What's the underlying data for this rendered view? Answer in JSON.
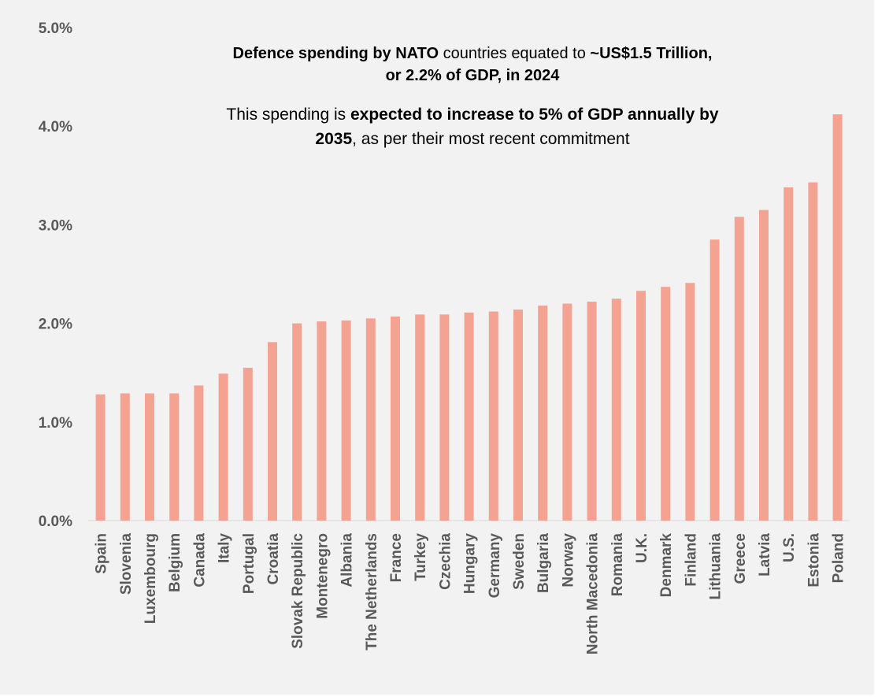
{
  "title": {
    "part1_bold": "Defence spending by NATO",
    "part2": " countries equated to ",
    "part3_bold": "~US$1.5 Trillion,",
    "line2_bold": "or 2.2% of GDP, in 2024"
  },
  "subtitle": {
    "part1": "This spending is ",
    "part2_bold": "expected to increase to 5% of GDP annually by",
    "part3_bold": "2035",
    "part4": ", as per their most recent commitment"
  },
  "colors": {
    "bar": "#f4a291",
    "background": "#f2f2f2",
    "axis_text": "#595959"
  },
  "chart_data": {
    "type": "bar",
    "categories": [
      "Spain",
      "Slovenia",
      "Luxembourg",
      "Belgium",
      "Canada",
      "Italy",
      "Portugal",
      "Croatia",
      "Slovak Republic",
      "Montenegro",
      "Albania",
      "The Netherlands",
      "France",
      "Turkey",
      "Czechia",
      "Hungary",
      "Germany",
      "Sweden",
      "Bulgaria",
      "Norway",
      "North Macedonia",
      "Romania",
      "U.K.",
      "Denmark",
      "Finland",
      "Lithuania",
      "Greece",
      "Latvia",
      "U.S.",
      "Estonia",
      "Poland"
    ],
    "values": [
      1.28,
      1.29,
      1.29,
      1.29,
      1.37,
      1.49,
      1.55,
      1.81,
      2.0,
      2.02,
      2.03,
      2.05,
      2.07,
      2.09,
      2.09,
      2.11,
      2.12,
      2.14,
      2.18,
      2.2,
      2.22,
      2.25,
      2.33,
      2.37,
      2.41,
      2.85,
      3.08,
      3.15,
      3.38,
      3.43,
      4.12
    ],
    "ylim": [
      0,
      5
    ],
    "yticks": [
      "0.0%",
      "1.0%",
      "2.0%",
      "3.0%",
      "4.0%",
      "5.0%"
    ],
    "grid": false,
    "legend": false
  }
}
